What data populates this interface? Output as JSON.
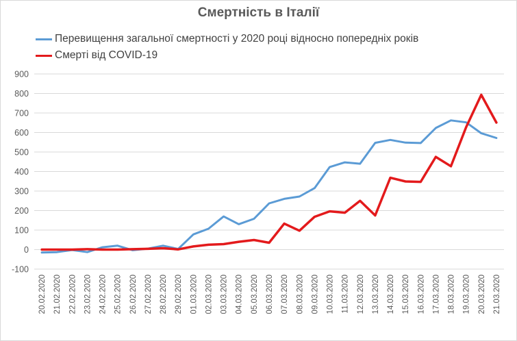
{
  "chart_data": {
    "type": "line",
    "title": "Смертність в Італії",
    "xlabel": "",
    "ylabel": "",
    "ylim": [
      -100,
      900
    ],
    "yticks": [
      -100,
      0,
      100,
      200,
      300,
      400,
      500,
      600,
      700,
      800,
      900
    ],
    "grid": true,
    "legend_position": "top-left",
    "categories": [
      "20.02.2020",
      "21.02.2020",
      "22.02.2020",
      "23.02.2020",
      "24.02.2020",
      "25.02.2020",
      "26.02.2020",
      "27.02.2020",
      "28.02.2020",
      "29.02.2020",
      "01.03.2020",
      "02.03.2020",
      "03.03.2020",
      "04.03.2020",
      "05.03.2020",
      "06.03.2020",
      "07.03.2020",
      "08.03.2020",
      "09.03.2020",
      "10.03.2020",
      "11.03.2020",
      "12.03.2020",
      "13.03.2020",
      "14.03.2020",
      "15.03.2020",
      "16.03.2020",
      "17.03.2020",
      "18.03.2020",
      "19.03.2020",
      "20.03.2020",
      "21.03.2020"
    ],
    "series": [
      {
        "name": "Перевищення загальної смертності у 2020 році відносно попередніх років",
        "color": "#5b9bd5",
        "values": [
          -15,
          -13,
          -2,
          -13,
          12,
          20,
          -3,
          5,
          20,
          3,
          78,
          107,
          170,
          130,
          158,
          237,
          260,
          272,
          315,
          423,
          447,
          440,
          547,
          562,
          548,
          546,
          623,
          662,
          652,
          596,
          572
        ]
      },
      {
        "name": "Смерті від COVID-19",
        "color": "#e31a1c",
        "values": [
          0,
          0,
          0,
          2,
          0,
          0,
          2,
          4,
          7,
          1,
          16,
          25,
          28,
          40,
          49,
          35,
          133,
          97,
          168,
          196,
          189,
          250,
          175,
          368,
          349,
          347,
          475,
          427,
          627,
          793,
          651
        ]
      }
    ]
  }
}
